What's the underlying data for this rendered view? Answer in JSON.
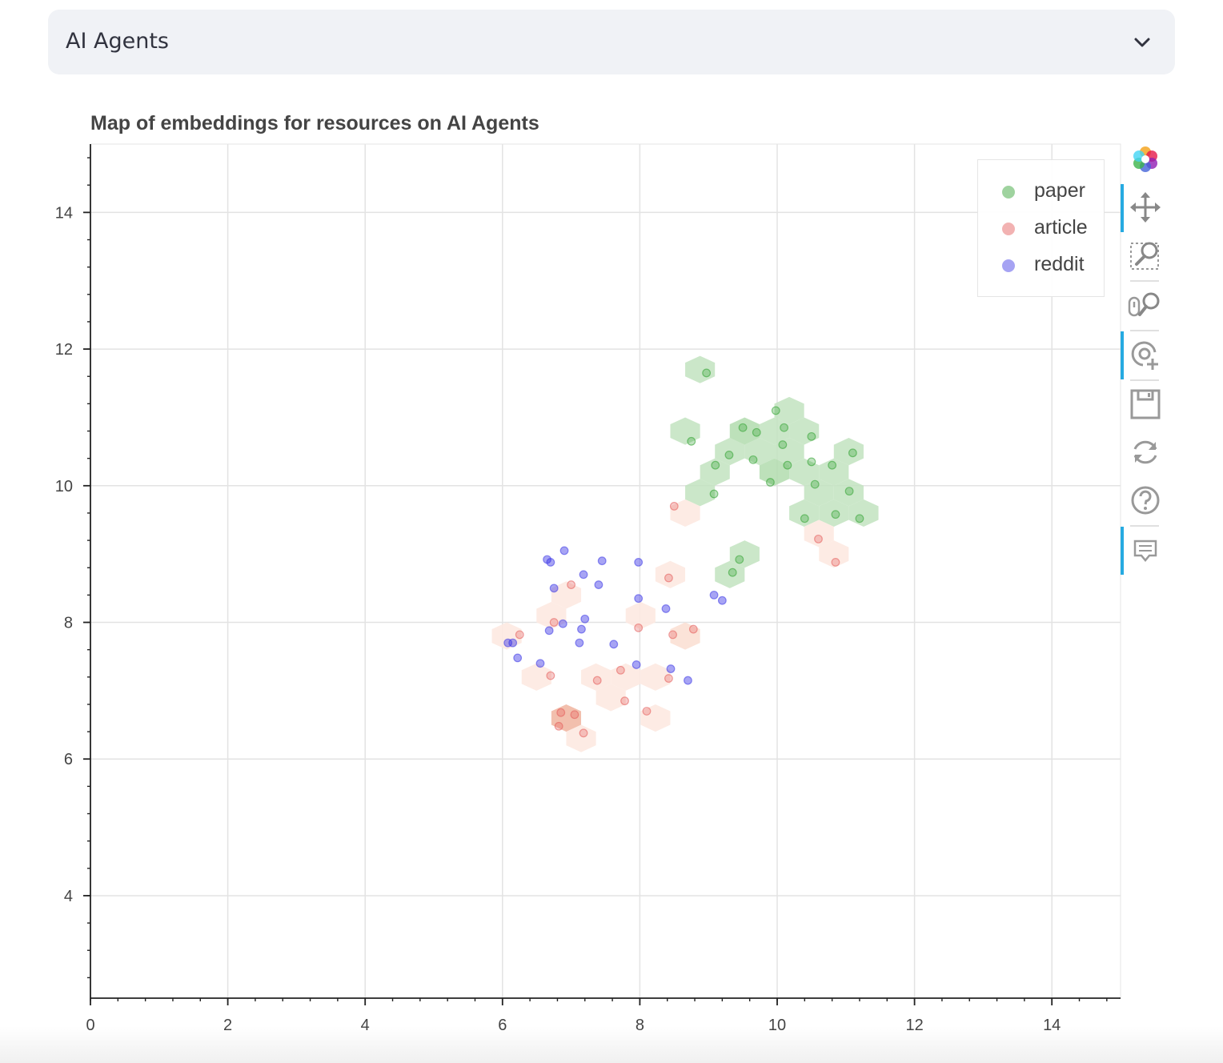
{
  "selectbox": {
    "value": "AI Agents",
    "icon": "chevron-down-icon"
  },
  "toolbar": {
    "tools": [
      {
        "name": "bokeh-logo-icon",
        "active": false
      },
      {
        "name": "pan-icon",
        "active": true
      },
      {
        "name": "box-zoom-icon",
        "active": false
      },
      {
        "name": "wheel-zoom-icon",
        "active": false
      },
      {
        "name": "tap-icon",
        "active": true
      },
      {
        "name": "save-icon",
        "active": false
      },
      {
        "name": "reset-icon",
        "active": false
      },
      {
        "name": "help-icon",
        "active": false
      },
      {
        "name": "hover-icon",
        "active": true
      }
    ]
  },
  "chart_data": {
    "type": "scatter",
    "title": "Map of embeddings for resources on AI Agents",
    "xlim": [
      0,
      15
    ],
    "ylim": [
      2.5,
      15
    ],
    "x_ticks": [
      0,
      2,
      4,
      6,
      8,
      10,
      12,
      14
    ],
    "y_ticks": [
      4,
      6,
      8,
      10,
      12,
      14
    ],
    "x_tick_labels": [
      "0",
      "2",
      "4",
      "6",
      "8",
      "10",
      "12",
      "14"
    ],
    "y_tick_labels": [
      "4",
      "6",
      "8",
      "10",
      "12",
      "14"
    ],
    "grid": true,
    "legend_position": "top-right",
    "series": [
      {
        "name": "paper",
        "color": "#2ca02c",
        "x": [
          8.97,
          8.75,
          9.1,
          9.08,
          9.3,
          9.5,
          9.7,
          9.98,
          10.1,
          10.08,
          10.5,
          10.15,
          10.5,
          10.8,
          11.1,
          10.55,
          11.05,
          10.4,
          10.85,
          11.2,
          9.65,
          9.9,
          9.35,
          9.45
        ],
        "y": [
          11.65,
          10.65,
          10.3,
          9.88,
          10.45,
          10.85,
          10.78,
          11.1,
          10.85,
          10.6,
          10.72,
          10.3,
          10.35,
          10.3,
          10.48,
          10.02,
          9.92,
          9.52,
          9.58,
          9.52,
          10.38,
          10.05,
          8.73,
          8.92
        ]
      },
      {
        "name": "article",
        "color": "#e45756",
        "x": [
          8.5,
          10.6,
          10.85,
          8.42,
          7.0,
          6.75,
          6.25,
          6.7,
          7.38,
          7.72,
          7.78,
          7.98,
          8.1,
          8.42,
          8.48,
          8.78,
          6.85,
          7.05,
          6.82,
          7.18
        ],
        "y": [
          9.7,
          9.22,
          8.88,
          8.65,
          8.55,
          8.0,
          7.82,
          7.22,
          7.15,
          7.3,
          6.85,
          7.92,
          6.7,
          7.18,
          7.82,
          7.9,
          6.68,
          6.65,
          6.48,
          6.38
        ]
      },
      {
        "name": "reddit",
        "color": "#3b36e6",
        "x": [
          6.65,
          6.7,
          6.9,
          7.45,
          7.98,
          7.18,
          6.75,
          7.4,
          7.98,
          8.38,
          9.08,
          9.2,
          7.2,
          6.88,
          7.15,
          6.68,
          6.08,
          6.15,
          7.12,
          7.62,
          6.22,
          6.55,
          7.95,
          8.45,
          8.7
        ],
        "y": [
          8.92,
          8.88,
          9.05,
          8.9,
          8.88,
          8.7,
          8.5,
          8.55,
          8.35,
          8.2,
          8.4,
          8.32,
          8.05,
          7.98,
          7.9,
          7.88,
          7.7,
          7.7,
          7.7,
          7.68,
          7.48,
          7.4,
          7.38,
          7.32,
          7.15
        ]
      }
    ]
  }
}
